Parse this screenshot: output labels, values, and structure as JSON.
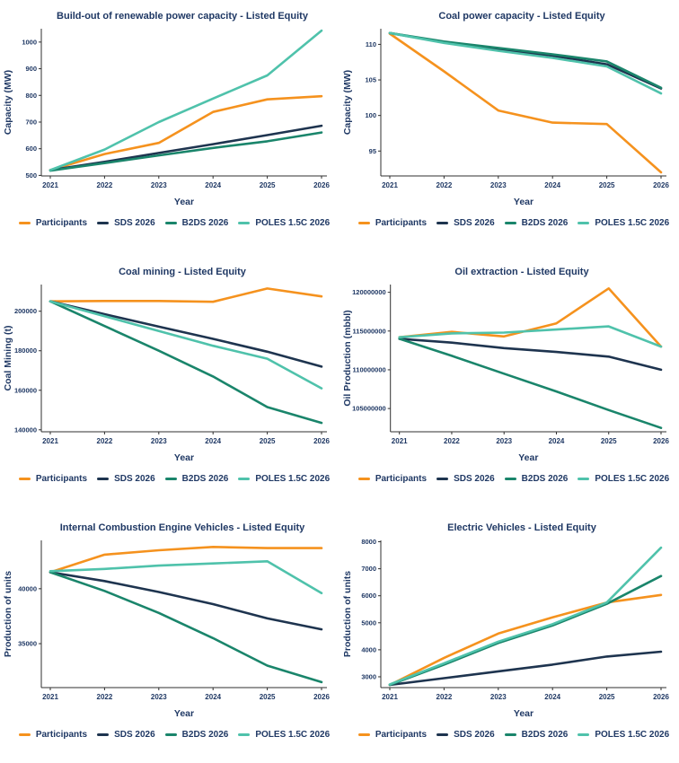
{
  "page": {
    "background": "#ffffff",
    "text_color": "#1f3864",
    "axis_color": "#2f2f2f"
  },
  "legend": {
    "items": [
      {
        "label": "Participants",
        "color": "#F5921E"
      },
      {
        "label": "SDS 2026",
        "color": "#1E344F"
      },
      {
        "label": "B2DS 2026",
        "color": "#1A856B"
      },
      {
        "label": "POLES 1.5C 2026",
        "color": "#4FC2AB"
      }
    ]
  },
  "chart_data": [
    {
      "type": "line",
      "title": "Build-out of renewable power capacity - Listed Equity",
      "xlabel": "Year",
      "ylabel": "Capacity (MW)",
      "x": [
        2021,
        2022,
        2023,
        2024,
        2025,
        2026
      ],
      "yticks": [
        500,
        600,
        700,
        800,
        900,
        1000
      ],
      "ylim": [
        498,
        1050
      ],
      "grid": false,
      "legend_position": "bottom",
      "series": [
        {
          "name": "Participants",
          "values": [
            520,
            580,
            622,
            738,
            785,
            797
          ]
        },
        {
          "name": "SDS 2026",
          "values": [
            520,
            551,
            584,
            617,
            651,
            686
          ]
        },
        {
          "name": "B2DS 2026",
          "values": [
            518,
            546,
            575,
            603,
            628,
            661
          ]
        },
        {
          "name": "POLES 1.5C 2026",
          "values": [
            520,
            597,
            700,
            788,
            875,
            1043
          ]
        }
      ]
    },
    {
      "type": "line",
      "title": "Coal power capacity - Listed Equity",
      "xlabel": "Year",
      "ylabel": "Capacity (MW)",
      "x": [
        2021,
        2022,
        2023,
        2024,
        2025,
        2026
      ],
      "yticks": [
        95,
        100,
        105,
        110
      ],
      "ylim": [
        91.5,
        112.2
      ],
      "grid": false,
      "legend_position": "bottom",
      "series": [
        {
          "name": "Participants",
          "values": [
            111.5,
            106.2,
            100.7,
            99.0,
            98.8,
            92.0
          ]
        },
        {
          "name": "SDS 2026",
          "values": [
            111.6,
            110.3,
            109.3,
            108.4,
            107.2,
            103.8
          ]
        },
        {
          "name": "B2DS 2026",
          "values": [
            111.6,
            110.4,
            109.5,
            108.6,
            107.6,
            103.9
          ]
        },
        {
          "name": "POLES 1.5C 2026",
          "values": [
            111.6,
            110.2,
            109.1,
            108.1,
            106.9,
            103.1
          ]
        }
      ]
    },
    {
      "type": "line",
      "title": "Coal mining - Listed Equity",
      "xlabel": "Year",
      "ylabel": "Coal Mining (t)",
      "x": [
        2021,
        2022,
        2023,
        2024,
        2025,
        2026
      ],
      "yticks": [
        140000,
        160000,
        180000,
        200000
      ],
      "ylim": [
        139000,
        213500
      ],
      "grid": false,
      "legend_position": "bottom",
      "series": [
        {
          "name": "Participants",
          "values": [
            205000,
            205200,
            205200,
            204800,
            211500,
            207500
          ]
        },
        {
          "name": "SDS 2026",
          "values": [
            205000,
            198500,
            192200,
            186000,
            179500,
            172000
          ]
        },
        {
          "name": "B2DS 2026",
          "values": [
            205000,
            192500,
            180000,
            167000,
            151500,
            143500
          ]
        },
        {
          "name": "POLES 1.5C 2026",
          "values": [
            205000,
            197500,
            190000,
            182500,
            176000,
            161000
          ]
        }
      ]
    },
    {
      "type": "line",
      "title": "Oil extraction - Listed Equity",
      "xlabel": "Year",
      "ylabel": "Oil Production (mbbl)",
      "x": [
        2021,
        2022,
        2023,
        2024,
        2025,
        2026
      ],
      "yticks": [
        105000000,
        110000000,
        115000000,
        120000000
      ],
      "ylim": [
        102000000,
        121000000
      ],
      "grid": false,
      "legend_position": "bottom",
      "series": [
        {
          "name": "Participants",
          "values": [
            114200000,
            114900000,
            114300000,
            116000000,
            120500000,
            113000000
          ]
        },
        {
          "name": "SDS 2026",
          "values": [
            114000000,
            113500000,
            112800000,
            112300000,
            111700000,
            110000000
          ]
        },
        {
          "name": "B2DS 2026",
          "values": [
            114000000,
            111800000,
            109500000,
            107200000,
            104800000,
            102500000
          ]
        },
        {
          "name": "POLES 1.5C 2026",
          "values": [
            114200000,
            114700000,
            114800000,
            115200000,
            115600000,
            113000000
          ]
        }
      ]
    },
    {
      "type": "line",
      "title": "Internal Combustion Engine Vehicles - Listed Equity",
      "xlabel": "Year",
      "ylabel": "Production of units",
      "x": [
        2021,
        2022,
        2023,
        2024,
        2025,
        2026
      ],
      "yticks": [
        35000,
        40000
      ],
      "ylim": [
        31000,
        44400
      ],
      "grid": false,
      "legend_position": "bottom",
      "series": [
        {
          "name": "Participants",
          "values": [
            41500,
            43100,
            43500,
            43800,
            43700,
            43700
          ]
        },
        {
          "name": "SDS 2026",
          "values": [
            41500,
            40700,
            39700,
            38600,
            37300,
            36300
          ]
        },
        {
          "name": "B2DS 2026",
          "values": [
            41500,
            39800,
            37800,
            35500,
            33000,
            31500
          ]
        },
        {
          "name": "POLES 1.5C 2026",
          "values": [
            41600,
            41800,
            42100,
            42300,
            42500,
            39600
          ]
        }
      ]
    },
    {
      "type": "line",
      "title": "Electric Vehicles - Listed Equity",
      "xlabel": "Year",
      "ylabel": "Production of units",
      "x": [
        2021,
        2022,
        2023,
        2024,
        2025,
        2026
      ],
      "yticks": [
        3000,
        4000,
        5000,
        6000,
        7000,
        8000
      ],
      "ylim": [
        2600,
        8050
      ],
      "grid": false,
      "legend_position": "bottom",
      "series": [
        {
          "name": "Participants",
          "values": [
            2700,
            3700,
            4600,
            5200,
            5750,
            6030
          ]
        },
        {
          "name": "SDS 2026",
          "values": [
            2700,
            2950,
            3200,
            3450,
            3750,
            3930
          ]
        },
        {
          "name": "B2DS 2026",
          "values": [
            2700,
            3450,
            4250,
            4900,
            5700,
            6730
          ]
        },
        {
          "name": "POLES 1.5C 2026",
          "values": [
            2720,
            3500,
            4300,
            4950,
            5750,
            7780
          ]
        }
      ]
    }
  ]
}
